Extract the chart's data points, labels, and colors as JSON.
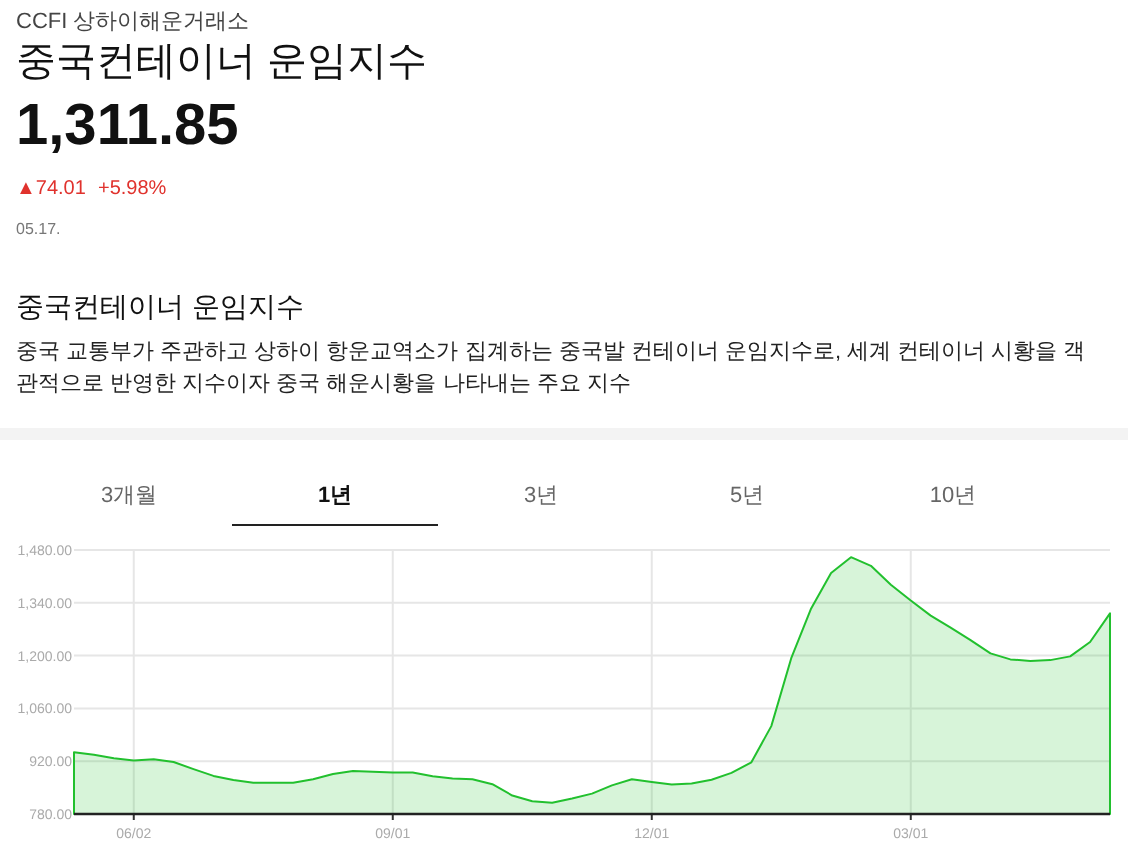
{
  "chart_data": {
    "type": "area",
    "title": "중국컨테이너 운임지수",
    "subtitle": "CCFI 상하이해운거래소",
    "annotations": [
      "1,311.85",
      "▲74.01",
      "+5.98%",
      "05.17.",
      "중국컨테이너 운임지수",
      "중국 교통부가 주관하고 상하이 항운교역소가 집계하는 중국발 컨테이너 운임지수로, 세계 컨테이너 시황을 객관적으로 반영한 지수이자 중국 해운시황을 나타내는 주요 지수",
      "3개월",
      "1년",
      "3년",
      "5년",
      "10년"
    ],
    "categories": [
      null,
      null,
      null,
      "06/02",
      null,
      null,
      null,
      null,
      null,
      null,
      null,
      null,
      null,
      null,
      null,
      null,
      "09/01",
      null,
      null,
      null,
      null,
      null,
      null,
      null,
      null,
      null,
      null,
      null,
      null,
      "12/01",
      null,
      null,
      null,
      null,
      null,
      null,
      null,
      null,
      null,
      null,
      null,
      null,
      "03/01",
      null,
      null,
      null,
      null,
      null,
      null,
      null,
      null,
      null,
      null
    ],
    "series": [
      {
        "color": "#22c02e",
        "values": [
          944,
          937,
          928,
          922,
          925,
          918,
          899,
          881,
          870,
          863,
          863,
          863,
          872,
          886,
          894,
          892,
          890,
          890,
          880,
          874,
          872,
          859,
          829,
          814,
          810,
          821,
          834,
          856,
          872,
          865,
          858,
          861,
          871,
          889,
          917,
          1013,
          1193,
          1325,
          1419,
          1461,
          1438,
          1388,
          1346,
          1306,
          1274,
          1241,
          1206,
          1190,
          1186,
          1188,
          1198,
          1236,
          1312
        ]
      }
    ],
    "ylim": [
      780,
      1480
    ],
    "yticks": [
      {
        "value": 780,
        "label": "780.00"
      },
      {
        "value": 920,
        "label": "920.00"
      },
      {
        "value": 1060,
        "label": "1,060.00"
      },
      {
        "value": 1200,
        "label": "1,200.00"
      },
      {
        "value": 1340,
        "label": "1,340.00"
      },
      {
        "value": 1480,
        "label": "1,480.00"
      }
    ],
    "grid": true
  }
}
